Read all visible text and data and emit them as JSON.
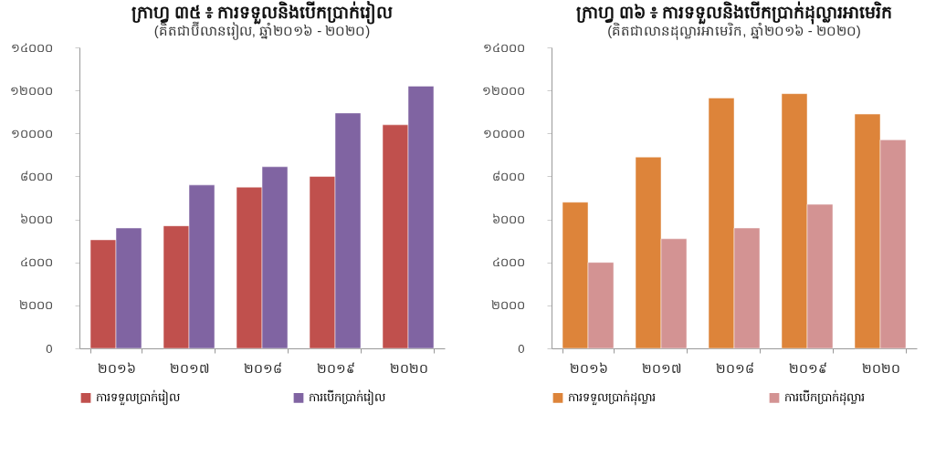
{
  "chart_data": [
    {
      "type": "bar",
      "title": "ក្រាហ្វ ៣៥ ៖ ការទទួលនិងបើកប្រាក់រៀល",
      "subtitle": "(គិតជាប៊ីលានរៀល, ឆ្នាំ២០១៦ - ២០២០)",
      "categories": [
        "២០១៦",
        "២០១៧",
        "២០១៨",
        "២០១៩",
        "២០២០"
      ],
      "series": [
        {
          "name": "ការទទួលប្រាក់រៀល",
          "color": "#c0504d",
          "values": [
            5050,
            5700,
            7500,
            8000,
            10400
          ]
        },
        {
          "name": "ការបើកប្រាក់រៀល",
          "color": "#8064a2",
          "values": [
            5600,
            7600,
            8450,
            10950,
            12200
          ]
        }
      ],
      "ylim": [
        0,
        14000
      ],
      "yticks": [
        0,
        {
          "value": 2000,
          "label": "២០០០"
        },
        {
          "value": 4000,
          "label": "៤០០០"
        },
        {
          "value": 6000,
          "label": "៦០០០"
        },
        {
          "value": 8000,
          "label": "៨០០០"
        },
        {
          "value": 10000,
          "label": "១០០០០"
        },
        {
          "value": 12000,
          "label": "១២០០០"
        },
        {
          "value": 14000,
          "label": "១៤០០០"
        }
      ],
      "grid": false,
      "legend": "bottom"
    },
    {
      "type": "bar",
      "title": "ក្រាហ្វ ៣៦ ៖ ការទទួលនិងបើកប្រាក់ដុល្លារអាមេរិក",
      "subtitle": "(គិតជាលានដុល្លារអាមេរិក, ឆ្នាំ២០១៦ - ២០២០)",
      "categories": [
        "២០១៦",
        "២០១៧",
        "២០១៨",
        "២០១៩",
        "២០២០"
      ],
      "series": [
        {
          "name": "ការទទួលប្រាក់ដុល្លារ",
          "color": "#dd843a",
          "values": [
            6800,
            8900,
            11650,
            11850,
            10900
          ]
        },
        {
          "name": "ការបើកប្រាក់ដុល្លារ",
          "color": "#d39393",
          "values": [
            4000,
            5100,
            5600,
            6700,
            9700
          ]
        }
      ],
      "ylim": [
        0,
        14000
      ],
      "yticks": [
        0,
        {
          "value": 2000,
          "label": "២០០០"
        },
        {
          "value": 4000,
          "label": "៤០០០"
        },
        {
          "value": 6000,
          "label": "៦០០០"
        },
        {
          "value": 8000,
          "label": "៨០០០"
        },
        {
          "value": 10000,
          "label": "១០០០០"
        },
        {
          "value": 12000,
          "label": "១២០០០"
        },
        {
          "value": 14000,
          "label": "១៤០០០"
        }
      ],
      "grid": false,
      "legend": "bottom"
    }
  ]
}
